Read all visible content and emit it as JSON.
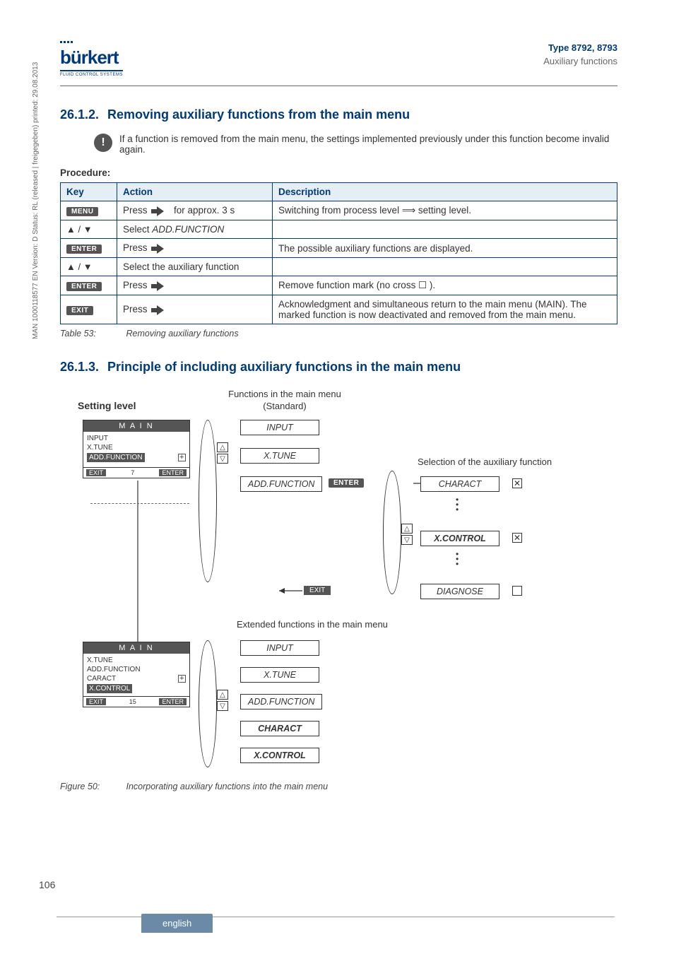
{
  "header": {
    "logo_text": "bürkert",
    "logo_tag": "FLUID CONTROL SYSTEMS",
    "type": "Type 8792, 8793",
    "subtitle": "Auxiliary functions"
  },
  "sidetext": "MAN 1000118577 EN Version: D Status: RL (released | freigegeben) printed: 29.08.2013",
  "page_number": "106",
  "footer_lang": "english",
  "sec1": {
    "num": "26.1.2.",
    "title": "Removing auxiliary functions from the main menu",
    "note": "If a function is removed from the main menu, the settings implemented previously under this function become invalid again.",
    "procedure_label": "Procedure:"
  },
  "table": {
    "headers": {
      "key": "Key",
      "action": "Action",
      "desc": "Description"
    },
    "rows": [
      {
        "key_label": "MENU",
        "key_type": "btn",
        "action_prefix": "Press ",
        "action_suffix": " for approx. 3 s",
        "desc": "Switching from process level ⟹ setting level."
      },
      {
        "key_label": "▲ / ▼",
        "key_type": "arrows",
        "action_prefix": "Select ",
        "action_em": "ADD.FUNCTION",
        "desc": ""
      },
      {
        "key_label": "ENTER",
        "key_type": "btn",
        "action_prefix": "Press ",
        "desc": "The possible auxiliary functions are displayed."
      },
      {
        "key_label": "▲ / ▼",
        "key_type": "arrows",
        "action_prefix": "Select the auxiliary function",
        "desc": ""
      },
      {
        "key_label": "ENTER",
        "key_type": "btn",
        "action_prefix": "Press ",
        "desc": "Remove function mark (no cross ☐ )."
      },
      {
        "key_label": "EXIT",
        "key_type": "btn",
        "action_prefix": "Press ",
        "desc": "Acknowledgment and simultaneous return to the main menu (MAIN). The marked function is now deactivated and removed from the main menu."
      }
    ],
    "caption_label": "Table 53:",
    "caption_text": "Removing auxiliary functions"
  },
  "sec2": {
    "num": "26.1.3.",
    "title": "Principle of including auxiliary functions in the main menu"
  },
  "diagram": {
    "setting_level": "Setting level",
    "std_label_line1": "Functions in the main menu",
    "std_label_line2": "(Standard)",
    "aux_sel_label": "Selection of the auxiliary function",
    "ext_label": "Extended functions in the main menu",
    "panel1": {
      "title": "M A I N",
      "items": [
        "INPUT",
        "X.TUNE"
      ],
      "highlight": "ADD.FUNCTION",
      "box_icon": "plus",
      "footer_left": "EXIT",
      "footer_mid": "7",
      "footer_right": "ENTER"
    },
    "panel2": {
      "title": "M A I N",
      "items": [
        "X.TUNE",
        "ADD.FUNCTION",
        "CARACT"
      ],
      "highlight": "X.CONTROL",
      "box_icon": "plus",
      "footer_left": "EXIT",
      "footer_mid": "15",
      "footer_right": "ENTER"
    },
    "std_boxes": [
      "INPUT",
      "X.TUNE",
      "ADD.FUNCTION"
    ],
    "enter_label": "ENTER",
    "exit_label": "EXIT",
    "aux_boxes": [
      {
        "label": "CHARACT",
        "checked": true
      },
      {
        "label": "X.CONTROL",
        "checked": true,
        "bold": true
      },
      {
        "label": "DIAGNOSE",
        "checked": false
      }
    ],
    "ext_boxes": [
      "INPUT",
      "X.TUNE",
      "ADD.FUNCTION",
      "CHARACT",
      "X.CONTROL"
    ],
    "figure_label": "Figure 50:",
    "figure_text": "Incorporating auxiliary functions into the main menu"
  }
}
